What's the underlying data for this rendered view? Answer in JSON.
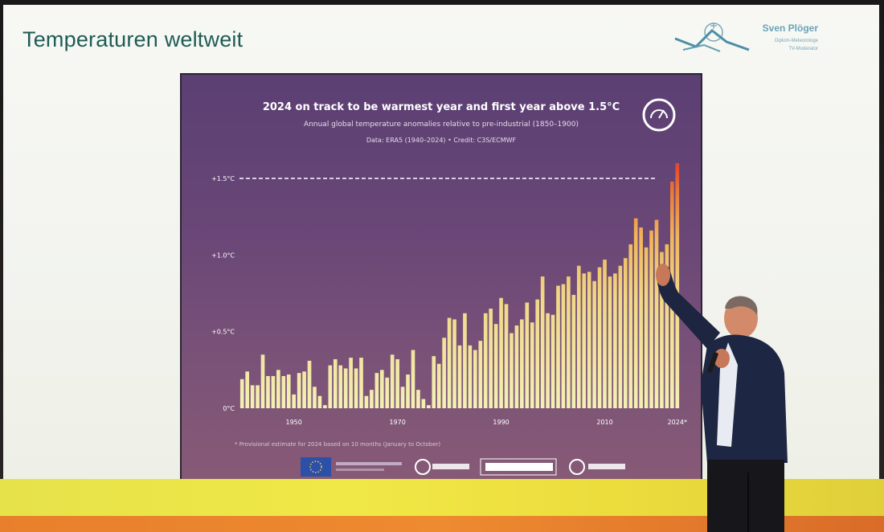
{
  "slide": {
    "title": "Temperaturen weltweit",
    "brand_name": "Sven Plöger",
    "brand_sub1": "Diplom-Meteorologe",
    "brand_sub2": "TV-Moderator"
  },
  "colors": {
    "slide_title": "#1f5b55",
    "chart_bg_top": "#5b3f73",
    "bar_low": "#f3f0b6",
    "bar_mid": "#f2c861",
    "bar_high": "#e64a2e"
  },
  "chart_data": {
    "type": "bar",
    "title": "2024 on track to be warmest year and first year above 1.5°C",
    "subtitle": "Annual global temperature anomalies relative to pre-industrial (1850–1900)",
    "source": "Data: ERA5 (1940–2024) • Credit: C3S/ECMWF",
    "footnote": "* Provisional estimate for 2024 based on 10 months (January to October)",
    "xlabel": "",
    "ylabel": "",
    "ylim": [
      0,
      1.6
    ],
    "reference_line": {
      "value": 1.5,
      "style": "dashed"
    },
    "y_ticks": [
      {
        "value": 0,
        "label": "0°C"
      },
      {
        "value": 0.5,
        "label": "+0.5°C"
      },
      {
        "value": 1.0,
        "label": "+1.0°C"
      },
      {
        "value": 1.5,
        "label": "+1.5°C"
      }
    ],
    "x_ticks": [
      {
        "value": 1950,
        "label": "1950"
      },
      {
        "value": 1970,
        "label": "1970"
      },
      {
        "value": 1990,
        "label": "1990"
      },
      {
        "value": 2010,
        "label": "2010"
      },
      {
        "value": 2024,
        "label": "2024*"
      }
    ],
    "grid": false,
    "x": [
      1940,
      1941,
      1942,
      1943,
      1944,
      1945,
      1946,
      1947,
      1948,
      1949,
      1950,
      1951,
      1952,
      1953,
      1954,
      1955,
      1956,
      1957,
      1958,
      1959,
      1960,
      1961,
      1962,
      1963,
      1964,
      1965,
      1966,
      1967,
      1968,
      1969,
      1970,
      1971,
      1972,
      1973,
      1974,
      1975,
      1976,
      1977,
      1978,
      1979,
      1980,
      1981,
      1982,
      1983,
      1984,
      1985,
      1986,
      1987,
      1988,
      1989,
      1990,
      1991,
      1992,
      1993,
      1994,
      1995,
      1996,
      1997,
      1998,
      1999,
      2000,
      2001,
      2002,
      2003,
      2004,
      2005,
      2006,
      2007,
      2008,
      2009,
      2010,
      2011,
      2012,
      2013,
      2014,
      2015,
      2016,
      2017,
      2018,
      2019,
      2020,
      2021,
      2022,
      2023,
      2024
    ],
    "values": [
      0.19,
      0.24,
      0.15,
      0.15,
      0.35,
      0.21,
      0.21,
      0.25,
      0.21,
      0.22,
      0.09,
      0.23,
      0.24,
      0.31,
      0.14,
      0.08,
      0.02,
      0.28,
      0.32,
      0.28,
      0.26,
      0.33,
      0.26,
      0.33,
      0.08,
      0.12,
      0.23,
      0.25,
      0.2,
      0.35,
      0.32,
      0.14,
      0.22,
      0.38,
      0.12,
      0.06,
      0.02,
      0.34,
      0.29,
      0.46,
      0.59,
      0.58,
      0.41,
      0.62,
      0.41,
      0.38,
      0.44,
      0.62,
      0.65,
      0.55,
      0.72,
      0.68,
      0.49,
      0.54,
      0.58,
      0.69,
      0.56,
      0.71,
      0.86,
      0.62,
      0.61,
      0.8,
      0.81,
      0.86,
      0.74,
      0.93,
      0.88,
      0.89,
      0.83,
      0.92,
      0.97,
      0.86,
      0.88,
      0.93,
      0.98,
      1.07,
      1.24,
      1.18,
      1.05,
      1.16,
      1.23,
      1.02,
      1.07,
      1.48,
      1.6
    ]
  }
}
